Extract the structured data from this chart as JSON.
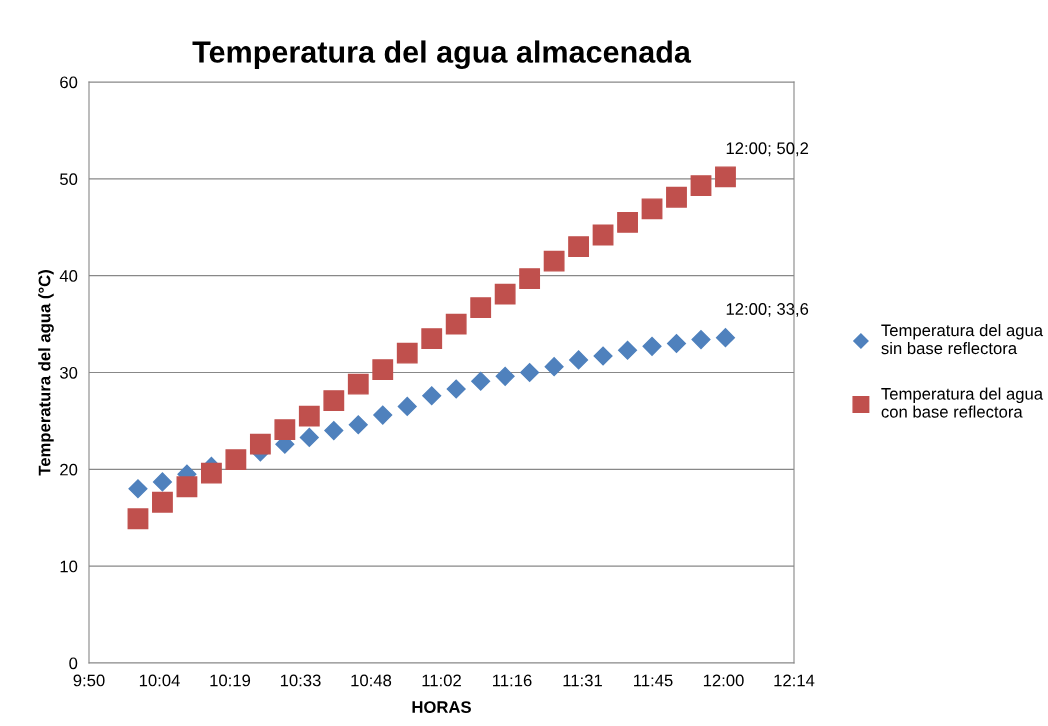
{
  "chart_data": {
    "type": "scatter",
    "title": "Temperatura del agua almacenada",
    "xlabel": "HORAS",
    "ylabel": "Temperatura del agua (°C)",
    "x": [
      10,
      10.0833,
      10.1667,
      10.25,
      10.3333,
      10.4167,
      10.5,
      10.5833,
      10.6667,
      10.75,
      10.8333,
      10.9167,
      11,
      11.0833,
      11.1667,
      11.25,
      11.3333,
      11.4167,
      11.5,
      11.5833,
      11.6667,
      11.75,
      11.8333,
      11.9167,
      12
    ],
    "series": [
      {
        "name": "Temperatura del agua\nsin base reflectora",
        "color": "#4f81bd",
        "marker": "diamond",
        "values": [
          18.0,
          18.7,
          19.5,
          20.3,
          null,
          21.8,
          22.6,
          23.3,
          24.0,
          24.6,
          25.6,
          26.5,
          27.6,
          28.3,
          29.1,
          29.6,
          30.0,
          30.6,
          31.3,
          31.7,
          32.3,
          32.7,
          33.0,
          33.4,
          33.6
        ]
      },
      {
        "name": "Temperatura del agua\ncon base reflectora",
        "color": "#c0504d",
        "marker": "square",
        "values": [
          14.9,
          16.6,
          18.2,
          19.6,
          21.0,
          22.6,
          24.1,
          25.5,
          27.1,
          28.8,
          30.3,
          32.0,
          33.5,
          35.0,
          36.7,
          38.1,
          39.7,
          41.5,
          43.0,
          44.2,
          45.5,
          46.9,
          48.1,
          49.3,
          50.2
        ]
      }
    ],
    "annotations": [
      {
        "text": "12:00; 50,2",
        "x": 12,
        "y": 50.2
      },
      {
        "text": "12:00; 33,6",
        "x": 12,
        "y": 33.6
      }
    ],
    "xlim": [
      9.8333,
      12.2333
    ],
    "xticks": [
      {
        "value": 9.8333,
        "label": "9:50"
      },
      {
        "value": 10.0733,
        "label": "10:04"
      },
      {
        "value": 10.3133,
        "label": "10:19"
      },
      {
        "value": 10.5533,
        "label": "10:33"
      },
      {
        "value": 10.7933,
        "label": "10:48"
      },
      {
        "value": 11.0333,
        "label": "11:02"
      },
      {
        "value": 11.2733,
        "label": "11:16"
      },
      {
        "value": 11.5133,
        "label": "11:31"
      },
      {
        "value": 11.7533,
        "label": "11:45"
      },
      {
        "value": 11.9933,
        "label": "12:00"
      },
      {
        "value": 12.2333,
        "label": "12:14"
      }
    ],
    "ylim": [
      0,
      60
    ],
    "yticks": [
      0,
      10,
      20,
      30,
      40,
      50,
      60
    ],
    "grid": "y",
    "legend": "right"
  }
}
